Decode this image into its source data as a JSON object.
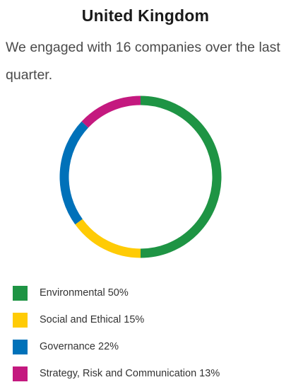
{
  "header": {
    "title": "United Kingdom",
    "intro": "We engaged with 16 companies over the last quarter."
  },
  "chart_data": {
    "type": "pie",
    "subtype": "donut",
    "categories": [
      "Environmental",
      "Social and Ethical",
      "Governance",
      "Strategy, Risk and Communication"
    ],
    "values": [
      50,
      15,
      22,
      13
    ],
    "unit": "%",
    "colors": [
      "#1e9444",
      "#ffcb05",
      "#0071b9",
      "#c4197f"
    ],
    "legend": {
      "position": "bottom-left",
      "entries": [
        "Environmental 50%",
        "Social and Ethical 15%",
        "Governance 22%",
        "Strategy, Risk and Communication 13%"
      ]
    }
  }
}
